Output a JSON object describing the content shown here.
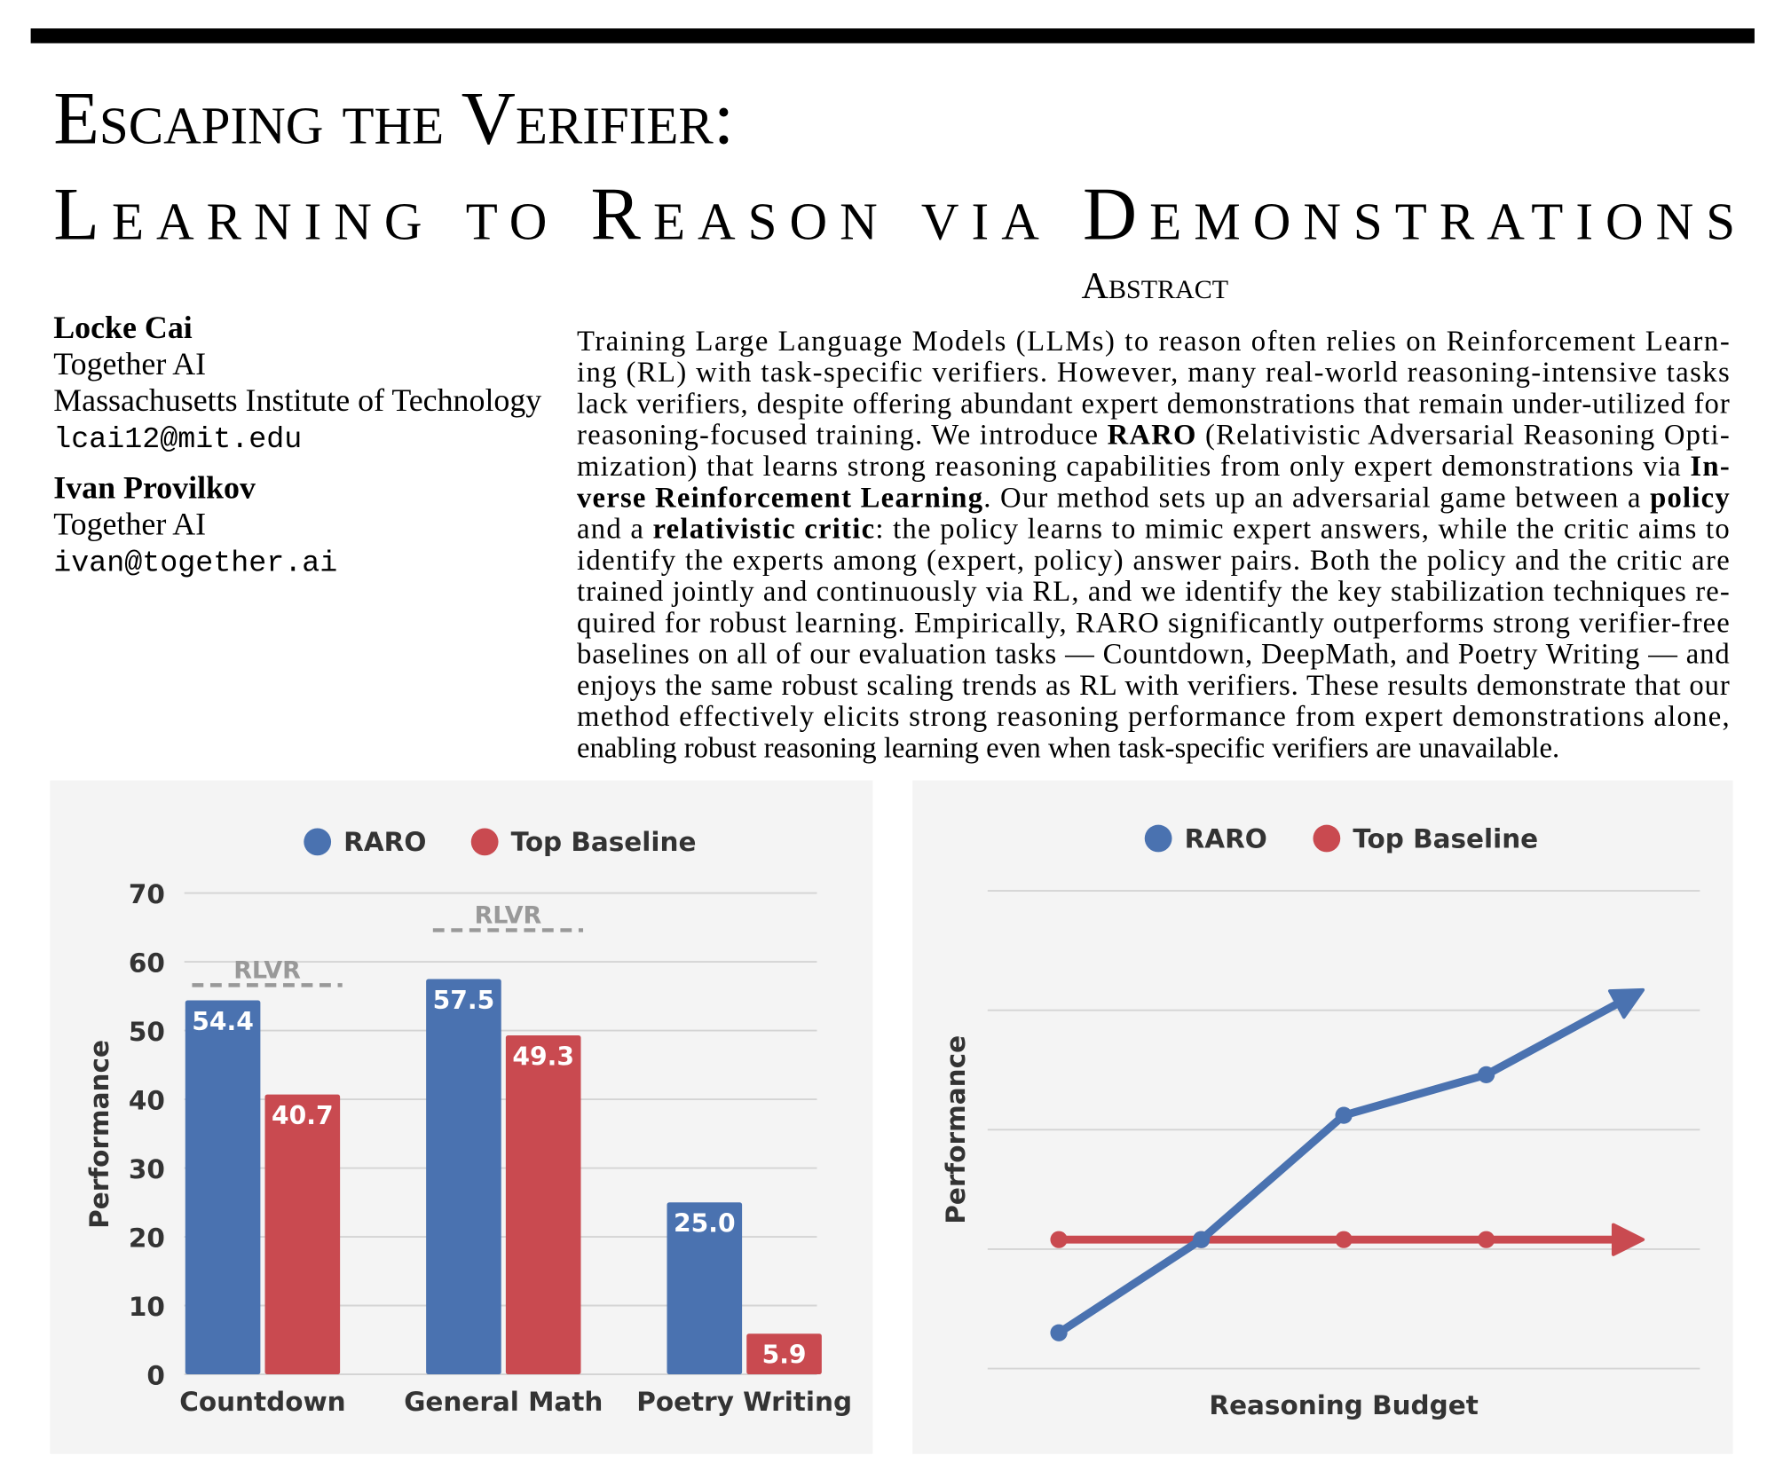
{
  "title_lines": [
    "Escaping the Verifier:",
    "Learning to Reason via Demonstrations"
  ],
  "abstract_heading": "Abstract",
  "authors": [
    {
      "name": "Locke Cai",
      "affiliations": [
        "Together AI",
        "Massachusetts Institute of Technology"
      ],
      "email": "lcai12@mit.edu"
    },
    {
      "name": "Ivan Provilkov",
      "affiliations": [
        "Together AI"
      ],
      "email": "ivan@together.ai"
    }
  ],
  "abstract": {
    "lines": [
      [
        "Training Large Language Models (LLMs) to reason often relies on Reinforcement Learn-"
      ],
      [
        "ing (RL) with task-specific verifiers. However, many real-world reasoning-intensive tasks"
      ],
      [
        "lack verifiers, despite offering abundant expert demonstrations that remain under-utilized for"
      ],
      [
        "reasoning-focused training. We introduce ",
        {
          "text": "RARO",
          "bold": true
        },
        " (Relativistic Adversarial Reasoning Opti-"
      ],
      [
        "mization) that learns strong reasoning capabilities from only expert demonstrations via ",
        {
          "text": "In-",
          "bold": true
        }
      ],
      [
        {
          "text": "verse Reinforcement Learning",
          "bold": true
        },
        ". Our method sets up an adversarial game between a ",
        {
          "text": "policy",
          "bold": true
        }
      ],
      [
        "and a ",
        {
          "text": "relativistic critic",
          "bold": true
        },
        ": the policy learns to mimic expert answers, while the critic aims to"
      ],
      [
        "identify the experts among (expert, policy) answer pairs. Both the policy and the critic are"
      ],
      [
        "trained jointly and continuously via RL, and we identify the key stabilization techniques re-"
      ],
      [
        "quired for robust learning. Empirically, RARO significantly outperforms strong verifier-free"
      ],
      [
        "baselines on all of our evaluation tasks — Countdown, DeepMath, and Poetry Writing — and"
      ],
      [
        "enjoys the same robust scaling trends as RL with verifiers. These results demonstrate that our"
      ],
      [
        "method effectively elicits strong reasoning performance from expert demonstrations alone,"
      ],
      [
        "enabling robust reasoning learning even when task-specific verifiers are unavailable."
      ]
    ]
  },
  "chart_data": [
    {
      "type": "bar",
      "ylabel": "Performance",
      "categories": [
        "Countdown",
        "General Math",
        "Poetry Writing"
      ],
      "series": [
        {
          "name": "RARO",
          "color": "#4a72b0",
          "values": [
            54.4,
            57.5,
            25.0
          ],
          "value_labels": [
            "54.4",
            "57.5",
            "25.0"
          ]
        },
        {
          "name": "Top Baseline",
          "color": "#c94a50",
          "values": [
            40.7,
            49.3,
            5.9
          ]
        }
      ],
      "annotations": [
        {
          "label": "RLVR",
          "category": "Countdown",
          "value": 56.6
        },
        {
          "label": "RLVR",
          "category": "General Math",
          "value": 64.6
        }
      ],
      "ylim": [
        0,
        70
      ],
      "yticks": [
        0,
        10,
        20,
        30,
        40,
        50,
        60,
        70
      ],
      "grid": true,
      "legend": "top"
    },
    {
      "type": "line",
      "xlabel": "Reasoning Budget",
      "ylabel": "Performance",
      "x": [
        0,
        1,
        2,
        3,
        4.1
      ],
      "xlim": [
        -0.5,
        4.5
      ],
      "series": [
        {
          "name": "RARO",
          "color": "#4a72b0",
          "values": [
            0.3,
            1.08,
            2.12,
            2.46,
            3.17
          ]
        },
        {
          "name": "Top Baseline",
          "color": "#c94a50",
          "values": [
            1.08,
            1.08,
            1.08,
            1.08,
            1.08
          ]
        }
      ],
      "ylim": [
        0,
        4
      ],
      "yticks": [
        0,
        1,
        2,
        3,
        4
      ],
      "show_tick_labels": false,
      "grid": true,
      "end_arrow": true,
      "legend": "top"
    }
  ]
}
